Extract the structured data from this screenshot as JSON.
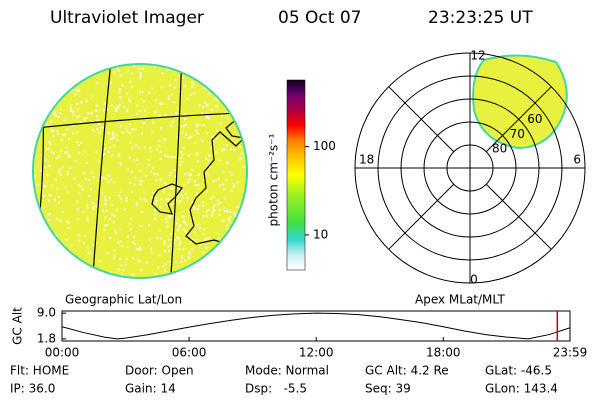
{
  "header": {
    "instrument": "Ultraviolet Imager",
    "date": "05 Oct 07",
    "time": "23:23:25 UT"
  },
  "globe": {
    "label": "Geographic Lat/Lon"
  },
  "colorbar": {
    "label": "photon cm⁻²s⁻¹",
    "scale": "log",
    "lim": [
      4,
      570
    ],
    "ticks": [
      10,
      100
    ]
  },
  "polar": {
    "label": "Apex MLat/MLT",
    "mlt_labels": [
      "12",
      "18",
      "6",
      "0"
    ],
    "rlim": [
      40,
      90
    ],
    "rgrid": [
      50,
      60,
      70,
      80
    ],
    "rticks": [
      60,
      70,
      80
    ]
  },
  "chart_data": {
    "type": "line",
    "ylabel": "GC Alt",
    "x": [
      0,
      1,
      2,
      2.6,
      3,
      4,
      5,
      6,
      7,
      8,
      9,
      10,
      11,
      12,
      13,
      14,
      15,
      16,
      17,
      18,
      19,
      20,
      21,
      22,
      23,
      23.983
    ],
    "values": [
      5.2,
      3.6,
      2.3,
      1.8,
      2.0,
      2.9,
      4.0,
      5.1,
      6.1,
      7.0,
      7.8,
      8.4,
      8.8,
      9.0,
      8.9,
      8.6,
      8.0,
      7.2,
      6.3,
      5.2,
      4.0,
      3.0,
      2.3,
      1.8,
      3.0,
      4.9
    ],
    "color": "#000000",
    "xlim": [
      0,
      23.983
    ],
    "ylim": [
      1.2,
      9.6
    ],
    "xticks": [
      {
        "value": 0,
        "label": "00:00"
      },
      {
        "value": 6,
        "label": "06:00"
      },
      {
        "value": 12,
        "label": "12:00"
      },
      {
        "value": 18,
        "label": "18:00"
      },
      {
        "value": 23.983,
        "label": "23:59"
      }
    ],
    "yticks": [
      {
        "value": 1.8,
        "label": "1.8"
      },
      {
        "value": 9,
        "label": "9.0"
      }
    ],
    "current_time": 23.383,
    "marker_color": "#cc0000"
  },
  "footer": {
    "rows": [
      [
        "Flt: HOME",
        "Door: Open",
        "Mode: Normal",
        "GC Alt: 4.2 Re",
        "GLat: -46.5"
      ],
      [
        "IP: 36.0",
        "Gain: 14",
        "Dsp:   -5.5",
        "Seq: 39",
        "GLon: 143.4"
      ]
    ]
  }
}
